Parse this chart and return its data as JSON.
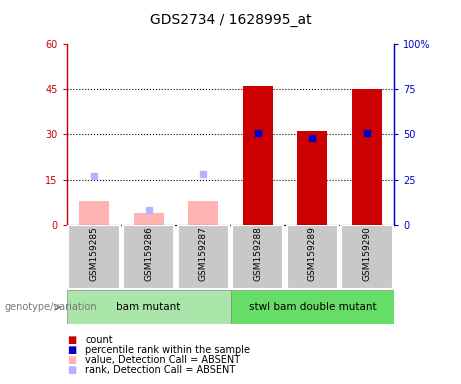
{
  "title": "GDS2734 / 1628995_at",
  "samples": [
    "GSM159285",
    "GSM159286",
    "GSM159287",
    "GSM159288",
    "GSM159289",
    "GSM159290"
  ],
  "bar_values": [
    null,
    null,
    null,
    46,
    31,
    45
  ],
  "absent_bar_values": [
    8,
    4,
    8,
    null,
    null,
    null
  ],
  "percentile_present": [
    null,
    null,
    null,
    51,
    48,
    51
  ],
  "absent_rank_values": [
    27,
    8,
    28,
    null,
    null,
    null
  ],
  "ylim_left": [
    0,
    60
  ],
  "ylim_right": [
    0,
    100
  ],
  "yticks_left": [
    0,
    15,
    30,
    45,
    60
  ],
  "yticks_right": [
    0,
    25,
    50,
    75,
    100
  ],
  "ytick_labels_left": [
    "0",
    "15",
    "30",
    "45",
    "60"
  ],
  "ytick_labels_right": [
    "0",
    "25",
    "50",
    "75",
    "100%"
  ],
  "group1_label": "bam mutant",
  "group2_label": "stwl bam double mutant",
  "group_label_prefix": "genotype/variation",
  "group1_color": "#aae6aa",
  "group2_color": "#66dd66",
  "legend_items": [
    {
      "label": "count",
      "color": "#cc0000"
    },
    {
      "label": "percentile rank within the sample",
      "color": "#0000cc"
    },
    {
      "label": "value, Detection Call = ABSENT",
      "color": "#ffb3b3"
    },
    {
      "label": "rank, Detection Call = ABSENT",
      "color": "#b3b3ff"
    }
  ],
  "bar_width": 0.55,
  "plot_bg": "#ffffff",
  "left_axis_color": "#cc0000",
  "right_axis_color": "#0000cc",
  "bar_color_present": "#cc0000",
  "bar_color_absent": "#ffb3b3",
  "dot_color_present": "#0000cc",
  "dot_color_absent": "#b3b3ff",
  "sample_box_color": "#c8c8c8",
  "grid_line_color": "#000000"
}
